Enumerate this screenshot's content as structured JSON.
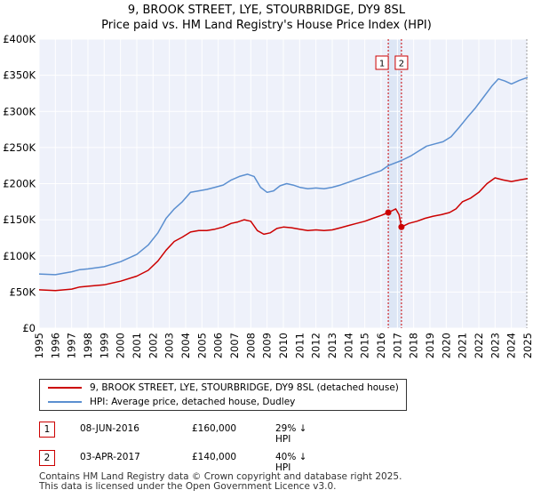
{
  "chart_data": {
    "type": "line",
    "title": "9, BROOK STREET, LYE, STOURBRIDGE, DY9 8SL",
    "subtitle": "Price paid vs. HM Land Registry's House Price Index (HPI)",
    "xlim": [
      1995,
      2025
    ],
    "ylim": [
      0,
      400000
    ],
    "y_ticks": [
      0,
      50000,
      100000,
      150000,
      200000,
      250000,
      300000,
      350000,
      400000
    ],
    "y_tick_labels": [
      "£0",
      "£50K",
      "£100K",
      "£150K",
      "£200K",
      "£250K",
      "£300K",
      "£350K",
      "£400K"
    ],
    "x_tick_labels": [
      "1995",
      "1996",
      "1997",
      "1998",
      "1999",
      "2000",
      "2001",
      "2002",
      "2003",
      "2004",
      "2005",
      "2006",
      "2007",
      "2008",
      "2009",
      "2010",
      "2011",
      "2012",
      "2013",
      "2014",
      "2015",
      "2016",
      "2017",
      "2018",
      "2019",
      "2020",
      "2021",
      "2022",
      "2023",
      "2024",
      "2025"
    ],
    "grid": true,
    "series": [
      {
        "name": "9, BROOK STREET, LYE, STOURBRIDGE, DY9 8SL (detached house)",
        "color": "#cc0000",
        "points": [
          [
            1995.0,
            53000
          ],
          [
            1996.0,
            52000
          ],
          [
            1997.0,
            54000
          ],
          [
            1997.5,
            57000
          ],
          [
            1998.0,
            58000
          ],
          [
            1999.0,
            60000
          ],
          [
            2000.0,
            65000
          ],
          [
            2001.0,
            72000
          ],
          [
            2001.7,
            80000
          ],
          [
            2002.3,
            93000
          ],
          [
            2002.8,
            108000
          ],
          [
            2003.3,
            120000
          ],
          [
            2003.8,
            126000
          ],
          [
            2004.3,
            133000
          ],
          [
            2004.8,
            135000
          ],
          [
            2005.3,
            135000
          ],
          [
            2005.8,
            137000
          ],
          [
            2006.3,
            140000
          ],
          [
            2006.8,
            145000
          ],
          [
            2007.2,
            147000
          ],
          [
            2007.6,
            150000
          ],
          [
            2008.0,
            148000
          ],
          [
            2008.4,
            135000
          ],
          [
            2008.8,
            130000
          ],
          [
            2009.2,
            132000
          ],
          [
            2009.6,
            138000
          ],
          [
            2010.0,
            140000
          ],
          [
            2010.5,
            139000
          ],
          [
            2011.0,
            137000
          ],
          [
            2011.5,
            135000
          ],
          [
            2012.0,
            136000
          ],
          [
            2012.5,
            135000
          ],
          [
            2013.0,
            136000
          ],
          [
            2013.5,
            139000
          ],
          [
            2014.0,
            142000
          ],
          [
            2014.5,
            145000
          ],
          [
            2015.0,
            148000
          ],
          [
            2015.5,
            152000
          ],
          [
            2016.0,
            156000
          ],
          [
            2016.44,
            160000
          ],
          [
            2016.9,
            165000
          ],
          [
            2017.1,
            157000
          ],
          [
            2017.25,
            140000
          ],
          [
            2017.7,
            145000
          ],
          [
            2018.2,
            148000
          ],
          [
            2018.7,
            152000
          ],
          [
            2019.2,
            155000
          ],
          [
            2019.7,
            157000
          ],
          [
            2020.2,
            160000
          ],
          [
            2020.6,
            165000
          ],
          [
            2021.0,
            175000
          ],
          [
            2021.5,
            180000
          ],
          [
            2022.0,
            188000
          ],
          [
            2022.5,
            200000
          ],
          [
            2023.0,
            208000
          ],
          [
            2023.5,
            205000
          ],
          [
            2024.0,
            203000
          ],
          [
            2024.5,
            205000
          ],
          [
            2025.0,
            207000
          ]
        ]
      },
      {
        "name": "HPI: Average price, detached house, Dudley",
        "color": "#5b8fd0",
        "points": [
          [
            1995.0,
            75000
          ],
          [
            1996.0,
            74000
          ],
          [
            1997.0,
            78000
          ],
          [
            1997.5,
            81000
          ],
          [
            1998.0,
            82000
          ],
          [
            1999.0,
            85000
          ],
          [
            2000.0,
            92000
          ],
          [
            2001.0,
            102000
          ],
          [
            2001.7,
            115000
          ],
          [
            2002.3,
            132000
          ],
          [
            2002.8,
            152000
          ],
          [
            2003.3,
            165000
          ],
          [
            2003.8,
            175000
          ],
          [
            2004.3,
            188000
          ],
          [
            2004.8,
            190000
          ],
          [
            2005.3,
            192000
          ],
          [
            2005.8,
            195000
          ],
          [
            2006.3,
            198000
          ],
          [
            2006.8,
            205000
          ],
          [
            2007.3,
            210000
          ],
          [
            2007.8,
            213000
          ],
          [
            2008.2,
            210000
          ],
          [
            2008.6,
            195000
          ],
          [
            2009.0,
            188000
          ],
          [
            2009.4,
            190000
          ],
          [
            2009.8,
            197000
          ],
          [
            2010.2,
            200000
          ],
          [
            2010.6,
            198000
          ],
          [
            2011.0,
            195000
          ],
          [
            2011.5,
            193000
          ],
          [
            2012.0,
            194000
          ],
          [
            2012.5,
            193000
          ],
          [
            2013.0,
            195000
          ],
          [
            2013.5,
            198000
          ],
          [
            2014.0,
            202000
          ],
          [
            2014.5,
            206000
          ],
          [
            2015.0,
            210000
          ],
          [
            2015.5,
            214000
          ],
          [
            2016.0,
            218000
          ],
          [
            2016.44,
            225000
          ],
          [
            2017.25,
            232000
          ],
          [
            2017.8,
            238000
          ],
          [
            2018.3,
            245000
          ],
          [
            2018.8,
            252000
          ],
          [
            2019.3,
            255000
          ],
          [
            2019.8,
            258000
          ],
          [
            2020.3,
            265000
          ],
          [
            2020.8,
            278000
          ],
          [
            2021.3,
            292000
          ],
          [
            2021.8,
            305000
          ],
          [
            2022.3,
            320000
          ],
          [
            2022.8,
            335000
          ],
          [
            2023.2,
            345000
          ],
          [
            2023.6,
            342000
          ],
          [
            2024.0,
            338000
          ],
          [
            2024.5,
            343000
          ],
          [
            2025.0,
            347000
          ]
        ]
      }
    ],
    "sales": [
      {
        "label": "1",
        "year": 2016.44,
        "price": 160000
      },
      {
        "label": "2",
        "year": 2017.25,
        "price": 140000
      }
    ]
  },
  "legend": {
    "items": [
      "9, BROOK STREET, LYE, STOURBRIDGE, DY9 8SL (detached house)",
      "HPI: Average price, detached house, Dudley"
    ]
  },
  "sales_table": [
    {
      "num": "1",
      "date": "08-JUN-2016",
      "price": "£160,000",
      "hpi": "29% ↓ HPI"
    },
    {
      "num": "2",
      "date": "03-APR-2017",
      "price": "£140,000",
      "hpi": "40% ↓ HPI"
    }
  ],
  "footer": {
    "line1": "Contains HM Land Registry data © Crown copyright and database right 2025.",
    "line2": "This data is licensed under the Open Government Licence v3.0."
  },
  "colors": {
    "property": "#cc0000",
    "hpi": "#5b8fd0",
    "highlight": "#dde6f5",
    "plot_bg": "#eef1fa"
  }
}
